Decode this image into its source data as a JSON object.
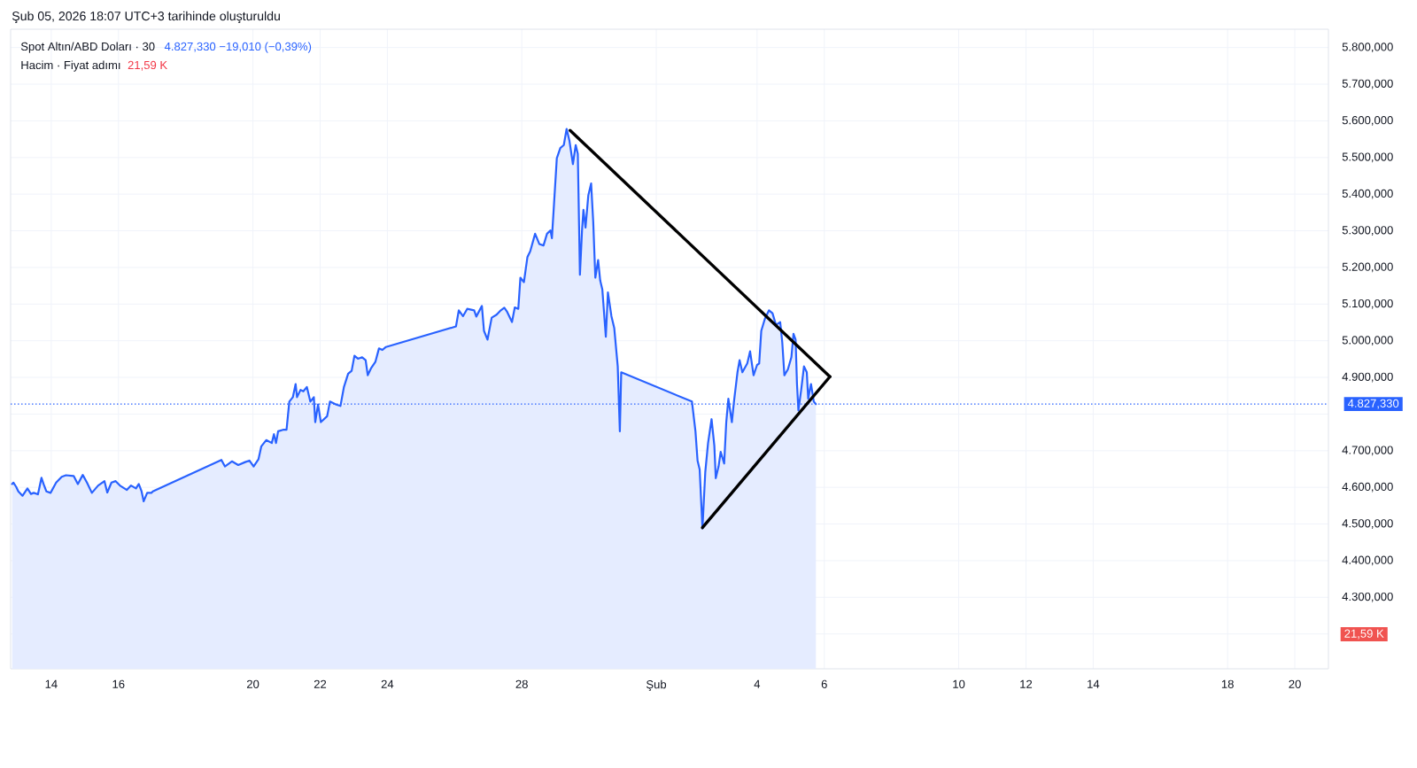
{
  "chart_data": {
    "type": "area",
    "title": "Spot Altın/ABD Doları · 30",
    "subtitle": "Hacim · Fiyat adımı",
    "annotations": [
      "Şub 05, 2026 18:07 UTC+3 tarihinde oluşturuldu",
      "4.827,330 −19,010 (−0,39%)",
      "21,59 K",
      "21,59 K"
    ],
    "series": [
      {
        "color": "#2962ff",
        "x": [
          "2026-01-12T20:00",
          "2026-01-12T21:00",
          "2026-01-12T23:00",
          "2026-01-13T00:30",
          "2026-01-13T03:30",
          "2026-01-13T07:00",
          "2026-01-13T09:30",
          "2026-01-13T11:30",
          "2026-01-13T14:30",
          "2026-01-13T17:00",
          "2026-01-13T18:30",
          "2026-01-13T20:30",
          "2026-01-13T23:30",
          "2026-01-14T03:30",
          "2026-01-14T07:30",
          "2026-01-14T10:30",
          "2026-01-14T16:00",
          "2026-01-14T19:00",
          "2026-01-14T22:30",
          "2026-01-15T01:30",
          "2026-01-15T05:00",
          "2026-01-15T09:30",
          "2026-01-15T14:00",
          "2026-01-15T16:00",
          "2026-01-15T19:00",
          "2026-01-15T22:00",
          "2026-01-16T01:00",
          "2026-01-16T06:00",
          "2026-01-16T09:00",
          "2026-01-16T12:30",
          "2026-01-16T14:30",
          "2026-01-16T16:30",
          "2026-01-16T18:00",
          "2026-01-16T20:30",
          "2026-01-16T23:30",
          "2026-01-17T00:30",
          "2026-01-19T01:30",
          "2026-01-19T04:00",
          "2026-01-19T09:00",
          "2026-01-19T13:30",
          "2026-01-19T18:30",
          "2026-01-19T21:30",
          "2026-01-20T00:30",
          "2026-01-20T04:00",
          "2026-01-20T06:00",
          "2026-01-20T09:30",
          "2026-01-20T13:30",
          "2026-01-20T15:00",
          "2026-01-20T16:30",
          "2026-01-20T18:00",
          "2026-01-20T21:30",
          "2026-01-21T00:00",
          "2026-01-21T02:00",
          "2026-01-21T04:30",
          "2026-01-21T06:30",
          "2026-01-21T07:30",
          "2026-01-21T10:00",
          "2026-01-21T12:00",
          "2026-01-21T14:30",
          "2026-01-21T17:00",
          "2026-01-21T19:30",
          "2026-01-21T20:30",
          "2026-01-21T22:30",
          "2026-01-22T00:30",
          "2026-01-22T05:00",
          "2026-01-22T07:00",
          "2026-01-22T11:30",
          "2026-01-22T14:30",
          "2026-01-22T17:00",
          "2026-01-22T20:00",
          "2026-01-22T22:30",
          "2026-01-23T00:30",
          "2026-01-23T03:00",
          "2026-01-23T06:00",
          "2026-01-23T08:30",
          "2026-01-23T10:00",
          "2026-01-23T12:30",
          "2026-01-23T15:30",
          "2026-01-23T18:00",
          "2026-01-23T20:30",
          "2026-01-23T23:00",
          "2026-01-26T01:00",
          "2026-01-26T03:00",
          "2026-01-26T06:00",
          "2026-01-26T09:00",
          "2026-01-26T14:00",
          "2026-01-26T15:30",
          "2026-01-26T19:30",
          "2026-01-26T21:00",
          "2026-01-26T23:30",
          "2026-01-27T02:30",
          "2026-01-27T06:00",
          "2026-01-27T09:00",
          "2026-01-27T11:30",
          "2026-01-27T13:30",
          "2026-01-27T17:00",
          "2026-01-27T19:00",
          "2026-01-27T21:30",
          "2026-01-27T23:00",
          "2026-01-28T01:30",
          "2026-01-28T04:00",
          "2026-01-28T06:00",
          "2026-01-28T09:30",
          "2026-01-28T12:30",
          "2026-01-28T15:30",
          "2026-01-28T18:00",
          "2026-01-28T20:30",
          "2026-01-28T21:30",
          "2026-01-28T23:00",
          "2026-01-29T01:00",
          "2026-01-29T03:30",
          "2026-01-29T06:00",
          "2026-01-29T08:00",
          "2026-01-29T10:00",
          "2026-01-29T12:30",
          "2026-01-29T14:30",
          "2026-01-29T16:00",
          "2026-01-29T17:30",
          "2026-01-29T19:00",
          "2026-01-29T20:00",
          "2026-01-29T21:30",
          "2026-01-29T23:30",
          "2026-01-30T01:30",
          "2026-01-30T03:00",
          "2026-01-30T04:30",
          "2026-01-30T06:30",
          "2026-01-30T08:00",
          "2026-01-30T09:30",
          "2026-01-30T12:00",
          "2026-01-30T13:30",
          "2026-01-30T16:00",
          "2026-01-30T18:00",
          "2026-01-30T20:30",
          "2026-01-30T22:00",
          "2026-01-30T23:00",
          "2026-02-02T01:30",
          "2026-02-02T04:00",
          "2026-02-02T05:30",
          "2026-02-02T07:00",
          "2026-02-02T09:00",
          "2026-02-02T11:00",
          "2026-02-02T13:00",
          "2026-02-02T15:30",
          "2026-02-02T17:30",
          "2026-02-02T18:30",
          "2026-02-02T20:30",
          "2026-02-02T22:00",
          "2026-02-03T00:30",
          "2026-02-03T02:00",
          "2026-02-03T03:30",
          "2026-02-03T06:00",
          "2026-02-03T07:30",
          "2026-02-03T10:00",
          "2026-02-03T11:30",
          "2026-02-03T13:30",
          "2026-02-03T17:00",
          "2026-02-03T19:00",
          "2026-02-03T21:30",
          "2026-02-04T00:00",
          "2026-02-04T01:30",
          "2026-02-04T03:00",
          "2026-02-04T05:30",
          "2026-02-04T08:30",
          "2026-02-04T11:00",
          "2026-02-04T13:30",
          "2026-02-04T16:30",
          "2026-02-04T18:00",
          "2026-02-04T19:30",
          "2026-02-04T22:00",
          "2026-02-05T00:30",
          "2026-02-05T02:00",
          "2026-02-05T03:30",
          "2026-02-05T04:30",
          "2026-02-05T05:30",
          "2026-02-05T07:30",
          "2026-02-05T09:30",
          "2026-02-05T11:30",
          "2026-02-05T12:30",
          "2026-02-05T14:30",
          "2026-02-05T16:30",
          "2026-02-05T18:00"
        ],
        "values": [
          4609,
          4613,
          4601,
          4589,
          4577,
          4597,
          4582,
          4585,
          4581,
          4626,
          4609,
          4589,
          4585,
          4613,
          4629,
          4633,
          4631,
          4609,
          4634,
          4613,
          4585,
          4605,
          4617,
          4586,
          4613,
          4617,
          4605,
          4593,
          4605,
          4597,
          4609,
          4589,
          4562,
          4585,
          4585,
          4589,
          4675,
          4657,
          4671,
          4661,
          4669,
          4673,
          4657,
          4677,
          4712,
          4729,
          4721,
          4745,
          4721,
          4753,
          4757,
          4757,
          4834,
          4846,
          4882,
          4846,
          4866,
          4862,
          4874,
          4834,
          4846,
          4778,
          4826,
          4778,
          4794,
          4834,
          4826,
          4822,
          4874,
          4910,
          4918,
          4959,
          4951,
          4955,
          4947,
          4906,
          4926,
          4943,
          4979,
          4975,
          4983,
          5039,
          5083,
          5067,
          5087,
          5083,
          5066,
          5095,
          5027,
          5003,
          5063,
          5071,
          5083,
          5090,
          5079,
          5051,
          5091,
          5087,
          5172,
          5160,
          5228,
          5244,
          5292,
          5264,
          5260,
          5292,
          5301,
          5280,
          5373,
          5498,
          5526,
          5534,
          5578,
          5546,
          5482,
          5534,
          5510,
          5180,
          5301,
          5357,
          5309,
          5397,
          5429,
          5325,
          5172,
          5220,
          5164,
          5140,
          5011,
          5132,
          5067,
          5035,
          4930,
          4753,
          4914,
          4834,
          4753,
          4673,
          4649,
          4488,
          4641,
          4721,
          4786,
          4713,
          4625,
          4657,
          4697,
          4665,
          4778,
          4842,
          4778,
          4834,
          4914,
          4947,
          4914,
          4938,
          4971,
          4906,
          4934,
          4938,
          5027,
          5059,
          5083,
          5075,
          5043,
          5051,
          4995,
          4906,
          4922,
          4955,
          5019,
          5003,
          4882,
          4810,
          4866,
          4930,
          4914,
          4842,
          4882,
          4834,
          4827
        ]
      },
      {
        "type": "line",
        "color": "#000000",
        "x": [
          "2026-01-29T10:30",
          "2026-02-06T04:00"
        ],
        "values": [
          5574,
          4902
        ]
      },
      {
        "type": "line",
        "color": "#000000",
        "x": [
          "2026-02-02T09:00",
          "2026-02-06T04:00"
        ],
        "values": [
          4490,
          4902
        ]
      }
    ],
    "xlim": [
      "2026-01-12T19:00",
      "2026-02-21T00:00"
    ],
    "ylim": [
      4105,
      5850
    ],
    "xticks": [
      {
        "value": "2026-01-14",
        "label": "14"
      },
      {
        "value": "2026-01-16",
        "label": "16"
      },
      {
        "value": "2026-01-20",
        "label": "20"
      },
      {
        "value": "2026-01-22",
        "label": "22"
      },
      {
        "value": "2026-01-24",
        "label": "24"
      },
      {
        "value": "2026-01-28",
        "label": "28"
      },
      {
        "value": "2026-02",
        "label": "Şub"
      },
      {
        "value": "2026-02-04",
        "label": "4"
      },
      {
        "value": "2026-02-06",
        "label": "6"
      },
      {
        "value": "2026-02-10",
        "label": "10"
      },
      {
        "value": "2026-02-12",
        "label": "12"
      },
      {
        "value": "2026-02-14",
        "label": "14"
      },
      {
        "value": "2026-02-18",
        "label": "18"
      },
      {
        "value": "2026-02-20",
        "label": "20"
      }
    ],
    "yticks": [
      {
        "value": 4200,
        "label": null
      },
      {
        "value": 4300,
        "label": "4.300,000"
      },
      {
        "value": 4400,
        "label": "4.400,000"
      },
      {
        "value": 4500,
        "label": "4.500,000"
      },
      {
        "value": 4600,
        "label": "4.600,000"
      },
      {
        "value": 4700,
        "label": "4.700,000"
      },
      {
        "value": 4800,
        "label": null
      },
      {
        "value": 4900,
        "label": "4.900,000"
      },
      {
        "value": 5000,
        "label": "5.000,000"
      },
      {
        "value": 5100,
        "label": "5.100,000"
      },
      {
        "value": 5200,
        "label": "5.200,000"
      },
      {
        "value": 5300,
        "label": "5.300,000"
      },
      {
        "value": 5400,
        "label": "5.400,000"
      },
      {
        "value": 5500,
        "label": "5.500,000"
      },
      {
        "value": 5600,
        "label": "5.600,000"
      },
      {
        "value": 5700,
        "label": "5.700,000"
      },
      {
        "value": 5800,
        "label": "5.800,000"
      }
    ],
    "grid": true,
    "ref_lines": [
      {
        "axis": "y",
        "value": 4827.33,
        "label": "4.827,330",
        "color": "#2962ff",
        "line_style": "dotted"
      }
    ]
  }
}
